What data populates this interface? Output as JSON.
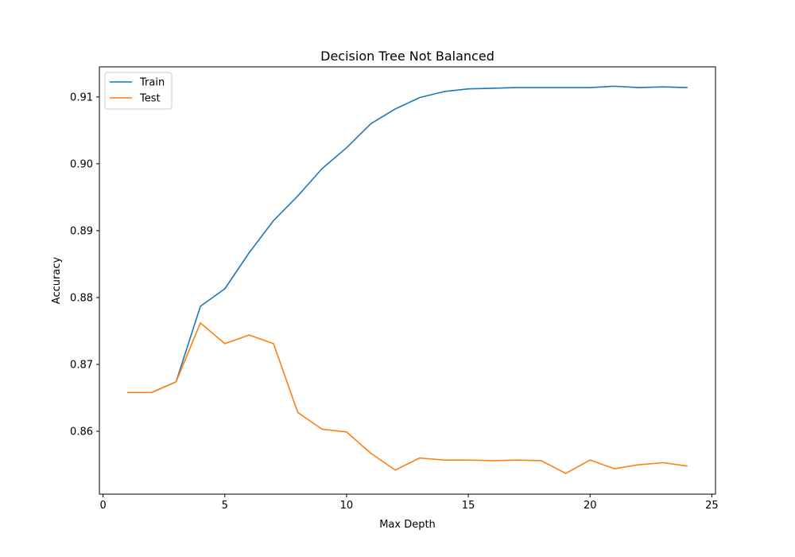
{
  "chart_data": {
    "type": "line",
    "title": "Decision Tree Not Balanced",
    "xlabel": "Max Depth",
    "ylabel": "Accuracy",
    "xlim": [
      -0.15,
      25.15
    ],
    "ylim": [
      0.8506,
      0.9145
    ],
    "xticks": [
      0,
      5,
      10,
      15,
      20,
      25
    ],
    "yticks": [
      0.86,
      0.87,
      0.88,
      0.89,
      0.9,
      0.91
    ],
    "ytick_labels": [
      "0.86",
      "0.87",
      "0.88",
      "0.89",
      "0.90",
      "0.91"
    ],
    "grid": false,
    "legend_position": "top-left",
    "x": [
      1,
      2,
      3,
      4,
      5,
      6,
      7,
      8,
      9,
      10,
      11,
      12,
      13,
      14,
      15,
      16,
      17,
      18,
      19,
      20,
      21,
      22,
      23,
      24
    ],
    "series": [
      {
        "name": "Train",
        "color": "#1f77b4",
        "values": [
          0.8658,
          0.8658,
          0.8674,
          0.8787,
          0.8813,
          0.8867,
          0.8915,
          0.8952,
          0.8993,
          0.9024,
          0.906,
          0.9082,
          0.9099,
          0.9108,
          0.9112,
          0.9113,
          0.9114,
          0.9114,
          0.9114,
          0.9114,
          0.9116,
          0.9114,
          0.9115,
          0.9114
        ]
      },
      {
        "name": "Test",
        "color": "#ff7f0e",
        "values": [
          0.8658,
          0.8658,
          0.8674,
          0.8762,
          0.8731,
          0.8744,
          0.8731,
          0.8628,
          0.8603,
          0.8599,
          0.8567,
          0.8542,
          0.856,
          0.8557,
          0.8557,
          0.8556,
          0.8557,
          0.8556,
          0.8537,
          0.8557,
          0.8544,
          0.855,
          0.8553,
          0.8548
        ]
      }
    ]
  }
}
